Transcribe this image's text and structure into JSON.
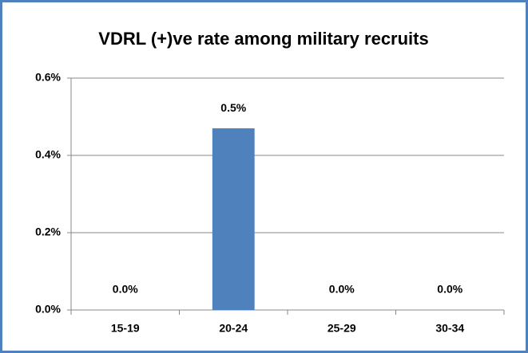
{
  "chart_data": {
    "type": "bar",
    "title": "VDRL (+)ve rate among military recruits",
    "categories": [
      "15-19",
      "20-24",
      "25-29",
      "30-34"
    ],
    "values": [
      0,
      0.47,
      0,
      0
    ],
    "value_labels": [
      "0.0%",
      "0.5%",
      "0.0%",
      "0.0%"
    ],
    "color": "#4f81bd",
    "ylim": [
      0,
      0.6
    ],
    "yticks": [
      {
        "value": 0,
        "label": "0.0%"
      },
      {
        "value": 0.2,
        "label": "0.2%"
      },
      {
        "value": 0.4,
        "label": "0.4%"
      },
      {
        "value": 0.6,
        "label": "0.6%"
      }
    ],
    "grid": true
  }
}
